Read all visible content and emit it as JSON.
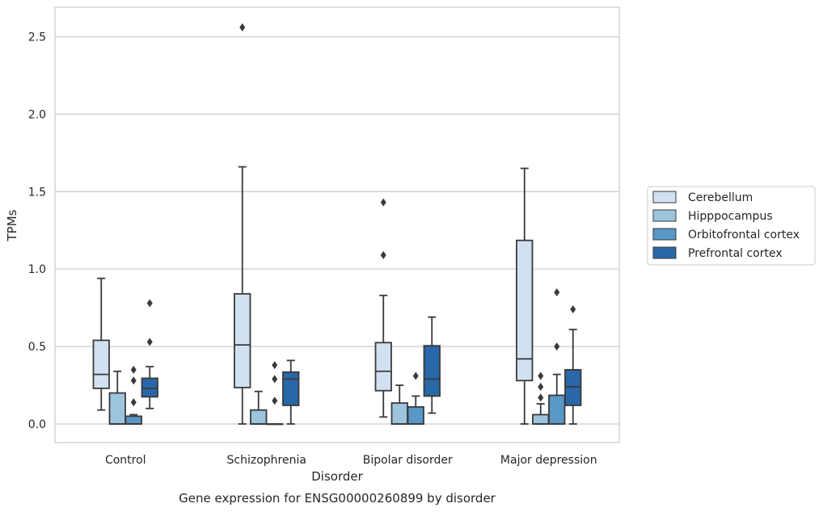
{
  "chart_data": {
    "type": "box",
    "title": "",
    "caption": "Gene expression for ENSG00000260899 by disorder",
    "xlabel": "Disorder",
    "ylabel": "TPMs",
    "ylim": [
      -0.12,
      2.69
    ],
    "yticks": [
      0.0,
      0.5,
      1.0,
      1.5,
      2.0,
      2.5
    ],
    "ytick_labels": [
      "0.0",
      "0.5",
      "1.0",
      "1.5",
      "2.0",
      "2.5"
    ],
    "grid": "horizontal",
    "legend_position": "right",
    "categories": [
      "Control",
      "Schizophrenia",
      "Bipolar disorder",
      "Major depression"
    ],
    "series": [
      {
        "name": "Cerebellum",
        "color": "#d1e1f1",
        "boxes": [
          {
            "whislo": 0.09,
            "q1": 0.23,
            "med": 0.32,
            "q3": 0.54,
            "whishi": 0.94,
            "fliers": []
          },
          {
            "whislo": 0.0,
            "q1": 0.235,
            "med": 0.51,
            "q3": 0.84,
            "whishi": 1.66,
            "fliers": [
              2.56
            ]
          },
          {
            "whislo": 0.045,
            "q1": 0.215,
            "med": 0.34,
            "q3": 0.525,
            "whishi": 0.83,
            "fliers": [
              1.09,
              1.43
            ]
          },
          {
            "whislo": 0.0,
            "q1": 0.28,
            "med": 0.42,
            "q3": 1.185,
            "whishi": 1.65,
            "fliers": []
          }
        ]
      },
      {
        "name": "Hipppocampus",
        "color": "#9cc4dd",
        "boxes": [
          {
            "whislo": 0.0,
            "q1": 0.0,
            "med": 0.0,
            "q3": 0.2,
            "whishi": 0.34,
            "fliers": []
          },
          {
            "whislo": 0.0,
            "q1": 0.0,
            "med": 0.0,
            "q3": 0.09,
            "whishi": 0.21,
            "fliers": []
          },
          {
            "whislo": 0.0,
            "q1": 0.0,
            "med": 0.0,
            "q3": 0.135,
            "whishi": 0.25,
            "fliers": []
          },
          {
            "whislo": 0.0,
            "q1": 0.0,
            "med": 0.0,
            "q3": 0.06,
            "whishi": 0.13,
            "fliers": [
              0.17,
              0.24,
              0.31
            ]
          }
        ]
      },
      {
        "name": "Orbitofrontal cortex",
        "color": "#5897c6",
        "boxes": [
          {
            "whislo": 0.0,
            "q1": 0.0,
            "med": 0.0,
            "q3": 0.05,
            "whishi": 0.06,
            "fliers": [
              0.14,
              0.28,
              0.35
            ]
          },
          {
            "whislo": 0.0,
            "q1": 0.0,
            "med": 0.0,
            "q3": 0.0,
            "whishi": 0.0,
            "fliers": [
              0.15,
              0.29,
              0.38
            ]
          },
          {
            "whislo": 0.0,
            "q1": 0.0,
            "med": 0.0,
            "q3": 0.11,
            "whishi": 0.18,
            "fliers": [
              0.31
            ]
          },
          {
            "whislo": 0.0,
            "q1": 0.0,
            "med": 0.0,
            "q3": 0.185,
            "whishi": 0.32,
            "fliers": [
              0.5,
              0.85
            ]
          }
        ]
      },
      {
        "name": "Prefrontal cortex",
        "color": "#2867a8",
        "boxes": [
          {
            "whislo": 0.1,
            "q1": 0.175,
            "med": 0.23,
            "q3": 0.295,
            "whishi": 0.37,
            "fliers": [
              0.53,
              0.78
            ]
          },
          {
            "whislo": 0.0,
            "q1": 0.12,
            "med": 0.29,
            "q3": 0.335,
            "whishi": 0.41,
            "fliers": []
          },
          {
            "whislo": 0.07,
            "q1": 0.18,
            "med": 0.29,
            "q3": 0.505,
            "whishi": 0.69,
            "fliers": []
          },
          {
            "whislo": 0.0,
            "q1": 0.12,
            "med": 0.24,
            "q3": 0.35,
            "whishi": 0.61,
            "fliers": [
              0.74
            ]
          }
        ]
      }
    ]
  }
}
